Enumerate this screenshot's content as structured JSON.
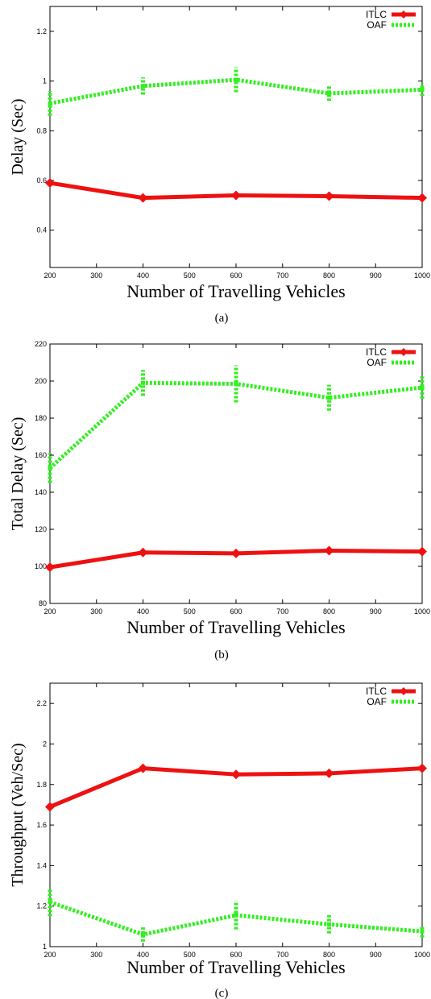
{
  "chart_data": [
    {
      "type": "line",
      "caption": "(a)",
      "xlabel": "Number of Travelling Vehicles",
      "ylabel": "Delay (Sec)",
      "xlim": [
        200,
        1000
      ],
      "ylim": [
        0.25,
        1.3
      ],
      "xticks": [
        200,
        300,
        400,
        500,
        600,
        700,
        800,
        900,
        1000
      ],
      "yticks": [
        0.4,
        0.6,
        0.8,
        1,
        1.2
      ],
      "ytick_labels": [
        "0.4",
        "0.6",
        "0.8",
        "1",
        "1.2"
      ],
      "legend_position": "top-right",
      "grid": false,
      "x": [
        200,
        400,
        600,
        800,
        1000
      ],
      "series": [
        {
          "name": "ITLC",
          "color": "#ee1111",
          "style": "solid",
          "values": [
            0.59,
            0.53,
            0.54,
            0.537,
            0.53
          ]
        },
        {
          "name": "OAF",
          "color": "#33ee22",
          "style": "dashed",
          "values": [
            0.91,
            0.98,
            1.005,
            0.95,
            0.965
          ],
          "errors": [
            0.05,
            0.035,
            0.05,
            0.03,
            0.025
          ]
        }
      ]
    },
    {
      "type": "line",
      "caption": "(b)",
      "xlabel": "Number of Travelling Vehicles",
      "ylabel": "Total Delay (Sec)",
      "xlim": [
        200,
        1000
      ],
      "ylim": [
        80,
        220
      ],
      "xticks": [
        200,
        300,
        400,
        500,
        600,
        700,
        800,
        900,
        1000
      ],
      "yticks": [
        80,
        100,
        120,
        140,
        160,
        180,
        200,
        220
      ],
      "ytick_labels": [
        "80",
        "100",
        "120",
        "140",
        "160",
        "180",
        "200",
        "220"
      ],
      "legend_position": "top-right",
      "grid": false,
      "x": [
        200,
        400,
        600,
        800,
        1000
      ],
      "series": [
        {
          "name": "ITLC",
          "color": "#ee1111",
          "style": "solid",
          "values": [
            99.5,
            107.5,
            107,
            108.5,
            108
          ]
        },
        {
          "name": "OAF",
          "color": "#33ee22",
          "style": "dashed",
          "values": [
            153,
            199,
            198.5,
            191,
            196.5
          ],
          "errors": [
            8,
            7,
            10,
            7,
            6
          ]
        }
      ]
    },
    {
      "type": "line",
      "caption": "(c)",
      "xlabel": "Number of Travelling Vehicles",
      "ylabel": "Throughput (Veh/Sec)",
      "xlim": [
        200,
        1000
      ],
      "ylim": [
        1,
        2.3
      ],
      "xticks": [
        200,
        300,
        400,
        500,
        600,
        700,
        800,
        900,
        1000
      ],
      "yticks": [
        1,
        1.2,
        1.4,
        1.6,
        1.8,
        2,
        2.2
      ],
      "ytick_labels": [
        "1",
        "1.2",
        "1.4",
        "1.6",
        "1.8",
        "2",
        "2.2"
      ],
      "legend_position": "top-right",
      "grid": false,
      "x": [
        200,
        400,
        600,
        800,
        1000
      ],
      "series": [
        {
          "name": "ITLC",
          "color": "#ee1111",
          "style": "solid",
          "values": [
            1.69,
            1.88,
            1.85,
            1.855,
            1.88
          ]
        },
        {
          "name": "OAF",
          "color": "#33ee22",
          "style": "dashed",
          "values": [
            1.22,
            1.06,
            1.155,
            1.11,
            1.075
          ],
          "errors": [
            0.07,
            0.035,
            0.07,
            0.045,
            0.03
          ]
        }
      ]
    }
  ]
}
